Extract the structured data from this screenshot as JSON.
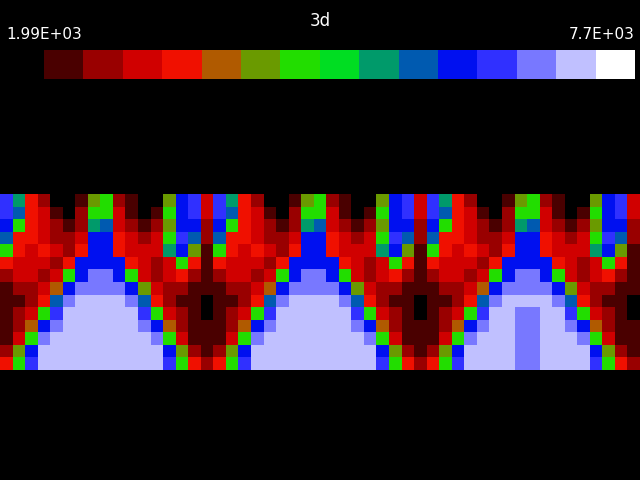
{
  "chart_data": {
    "type": "heatmap",
    "title": "3d",
    "tick_labels": false,
    "colors": [
      "#4a0000",
      "#990000",
      "#d00000",
      "#f01000",
      "#b05a00",
      "#6a9a00",
      "#22dd00",
      "#00dd22",
      "#009a6a",
      "#005ab0",
      "#0010f0",
      "#3030ff",
      "#7878ff",
      "#c0c0ff",
      "#ffffff"
    ],
    "colorbar": {
      "range": [
        1990,
        7700
      ],
      "ticks": [
        {
          "value": 1990,
          "label": "1.99E+03"
        },
        {
          "value": 7700,
          "label": "7.7E+03"
        }
      ]
    },
    "cells": [
      [
        6370,
        5230,
        3320,
        2560,
        null,
        null,
        2180,
        4080,
        4470,
        2560,
        2180,
        null,
        null,
        4080,
        5990,
        6370,
        2940,
        6370,
        5230,
        3320,
        2560,
        null,
        null,
        2180,
        4080,
        4470,
        2560,
        2180,
        null,
        null,
        4080,
        5990,
        6370,
        2940,
        6370,
        5230,
        3320,
        2560,
        null,
        null,
        2180,
        4080,
        4470,
        2560,
        2180,
        null,
        null,
        4080,
        5990,
        6370,
        2940
      ],
      [
        6370,
        5610,
        3320,
        2940,
        2180,
        null,
        2560,
        4470,
        4470,
        2940,
        2180,
        null,
        2180,
        4470,
        5990,
        6370,
        2940,
        6370,
        5610,
        3320,
        2940,
        2180,
        null,
        2560,
        4470,
        4470,
        2940,
        2180,
        null,
        2180,
        4470,
        5990,
        6370,
        2940,
        6370,
        5610,
        3320,
        2940,
        2180,
        null,
        2560,
        4470,
        4470,
        2940,
        2180,
        null,
        2180,
        4470,
        5990,
        6370,
        2940
      ],
      [
        5990,
        4470,
        3320,
        2940,
        2560,
        2180,
        2560,
        5230,
        5610,
        2940,
        2560,
        2180,
        2560,
        4080,
        5990,
        5990,
        2560,
        5990,
        4470,
        3320,
        2940,
        2560,
        2180,
        2560,
        5230,
        5610,
        2940,
        2560,
        2180,
        2560,
        4080,
        5990,
        5990,
        2560,
        5990,
        4470,
        3320,
        2940,
        2560,
        2180,
        2560,
        5230,
        5610,
        2940,
        2560,
        2180,
        2560,
        4080,
        5990,
        5990,
        2560
      ],
      [
        5610,
        3320,
        3320,
        2940,
        2560,
        2560,
        2940,
        5990,
        5990,
        3320,
        2940,
        2560,
        2940,
        4470,
        6370,
        5610,
        2560,
        5610,
        3320,
        3320,
        2940,
        2560,
        2560,
        2940,
        5990,
        5990,
        3320,
        2940,
        2560,
        2940,
        4470,
        6370,
        5610,
        2560,
        5610,
        3320,
        3320,
        2940,
        2560,
        2560,
        2940,
        5990,
        5990,
        3320,
        2940,
        2560,
        2940,
        4470,
        6370,
        5610,
        2560
      ],
      [
        4470,
        3320,
        2940,
        3320,
        2940,
        2560,
        3320,
        5990,
        5990,
        3320,
        2940,
        2940,
        2940,
        5230,
        5990,
        4080,
        2180,
        4470,
        3320,
        2940,
        3320,
        2940,
        2560,
        3320,
        5990,
        5990,
        3320,
        2940,
        2940,
        2940,
        5230,
        5990,
        4080,
        2180,
        4470,
        3320,
        2940,
        3320,
        2940,
        2560,
        3320,
        5990,
        5990,
        3320,
        2940,
        2940,
        2940,
        5230,
        5990,
        4080,
        2180
      ],
      [
        3320,
        2940,
        2940,
        2940,
        2560,
        3320,
        5990,
        5990,
        5990,
        5990,
        3320,
        2940,
        2560,
        2940,
        4470,
        3320,
        2180,
        3320,
        2940,
        2940,
        2940,
        2560,
        3320,
        5990,
        5990,
        5990,
        5990,
        3320,
        2940,
        2560,
        2940,
        4470,
        3320,
        2180,
        3320,
        2940,
        2940,
        2940,
        2560,
        3320,
        5990,
        5990,
        5990,
        5990,
        3320,
        2940,
        2560,
        2940,
        4470,
        3320,
        2180
      ],
      [
        2560,
        2940,
        2940,
        2560,
        2940,
        4470,
        5990,
        6750,
        6750,
        5990,
        4470,
        2940,
        2560,
        2940,
        3320,
        2560,
        2180,
        2560,
        2940,
        2940,
        2560,
        2940,
        4470,
        5990,
        6750,
        6750,
        5990,
        4470,
        2940,
        2560,
        2940,
        3320,
        2560,
        2180,
        2560,
        2940,
        2940,
        2560,
        2940,
        4470,
        5990,
        6750,
        6750,
        5990,
        4470,
        2940,
        2560,
        2940,
        3320,
        2560,
        2180
      ],
      [
        2180,
        2560,
        2560,
        2940,
        3700,
        5990,
        6750,
        6750,
        6750,
        6750,
        5990,
        4080,
        2940,
        2560,
        2560,
        2180,
        2180,
        2180,
        2560,
        2560,
        2940,
        3700,
        5990,
        6750,
        6750,
        6750,
        6750,
        5990,
        4080,
        2940,
        2560,
        2560,
        2180,
        2180,
        2180,
        2560,
        2560,
        2940,
        3700,
        5990,
        6750,
        6750,
        6750,
        6750,
        5990,
        4080,
        2940,
        2560,
        2560,
        2180,
        2180
      ],
      [
        2180,
        2180,
        2560,
        3320,
        5610,
        6750,
        7130,
        7130,
        7130,
        7130,
        6750,
        5610,
        3320,
        2560,
        2180,
        2180,
        null,
        2180,
        2180,
        2560,
        3320,
        5610,
        6750,
        7130,
        7130,
        7130,
        7130,
        6750,
        5610,
        3320,
        2560,
        2180,
        2180,
        null,
        2180,
        2180,
        2560,
        3320,
        5610,
        6750,
        7130,
        7130,
        7130,
        7130,
        6750,
        5610,
        3320,
        2560,
        2180,
        2180,
        null
      ],
      [
        2180,
        2560,
        2940,
        4470,
        6370,
        7130,
        7130,
        7130,
        7130,
        7130,
        7130,
        6370,
        4470,
        2940,
        2560,
        2180,
        null,
        2180,
        2560,
        2940,
        4470,
        6370,
        7130,
        7130,
        7130,
        7130,
        7130,
        7130,
        6370,
        4470,
        2940,
        2560,
        2180,
        null,
        2180,
        2560,
        2940,
        4470,
        6370,
        7130,
        7130,
        6750,
        6750,
        7130,
        7130,
        6370,
        4470,
        2940,
        2560,
        2180,
        null
      ],
      [
        2180,
        2560,
        3700,
        5990,
        6750,
        7130,
        7130,
        7130,
        7130,
        7130,
        7130,
        6750,
        5990,
        3700,
        2560,
        2180,
        2180,
        2180,
        2560,
        3700,
        5990,
        6750,
        7130,
        7130,
        7130,
        7130,
        7130,
        7130,
        6750,
        5990,
        3700,
        2560,
        2180,
        2180,
        2180,
        2560,
        3700,
        5990,
        6750,
        7130,
        7130,
        6750,
        6750,
        7130,
        7130,
        6750,
        5990,
        3700,
        2560,
        2180,
        2180
      ],
      [
        2180,
        2940,
        4470,
        6750,
        7130,
        7130,
        7130,
        7130,
        7130,
        7130,
        7130,
        7130,
        6750,
        4470,
        2940,
        2180,
        2180,
        2180,
        2940,
        4470,
        6750,
        7130,
        7130,
        7130,
        7130,
        7130,
        7130,
        7130,
        7130,
        6750,
        4470,
        2940,
        2180,
        2180,
        2180,
        2940,
        4470,
        6750,
        7130,
        7130,
        7130,
        6750,
        6750,
        7130,
        7130,
        7130,
        6750,
        4470,
        2940,
        2180,
        2180
      ],
      [
        2560,
        4080,
        5990,
        7130,
        7130,
        7130,
        7130,
        7130,
        7130,
        7130,
        7130,
        7130,
        7130,
        5990,
        4080,
        2560,
        2180,
        2560,
        4080,
        5990,
        7130,
        7130,
        7130,
        7130,
        7130,
        7130,
        7130,
        7130,
        7130,
        7130,
        5990,
        4080,
        2560,
        2180,
        2560,
        4080,
        5990,
        7130,
        7130,
        7130,
        7130,
        6750,
        6750,
        7130,
        7130,
        7130,
        7130,
        5990,
        4080,
        2560,
        2180
      ],
      [
        3320,
        4470,
        6370,
        7130,
        7130,
        7130,
        7130,
        7130,
        7130,
        7130,
        7130,
        7130,
        7130,
        6370,
        4470,
        3320,
        2560,
        3320,
        4470,
        6370,
        7130,
        7130,
        7130,
        7130,
        7130,
        7130,
        7130,
        7130,
        7130,
        7130,
        6370,
        4470,
        3320,
        2560,
        3320,
        4470,
        6370,
        7130,
        7130,
        7130,
        7130,
        6750,
        6750,
        7130,
        7130,
        7130,
        7130,
        6370,
        4470,
        3320,
        2560
      ]
    ]
  }
}
